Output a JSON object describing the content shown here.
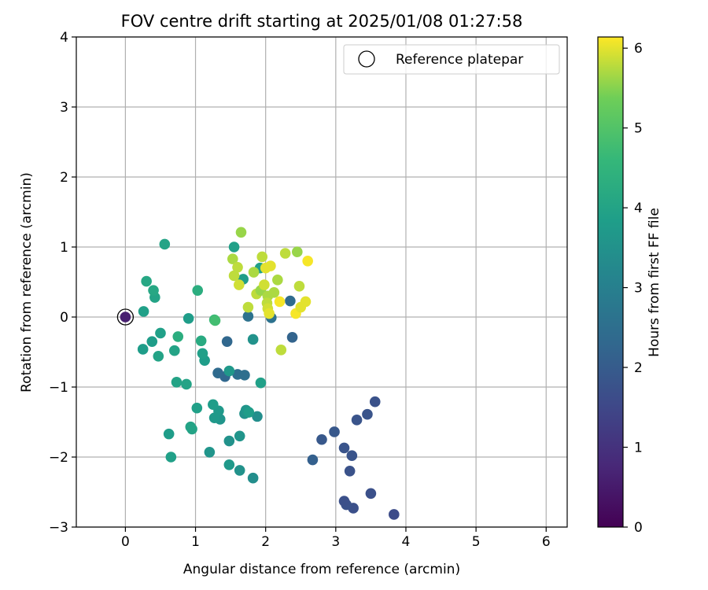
{
  "chart_data": {
    "type": "scatter",
    "title": "FOV centre drift starting at 2025/01/08 01:27:58",
    "xlabel": "Angular distance from reference (arcmin)",
    "ylabel": "Rotation from reference (arcmin)",
    "xlim": [
      -0.7,
      6.3
    ],
    "ylim": [
      -3,
      4
    ],
    "xticks": [
      0,
      1,
      2,
      3,
      4,
      5,
      6
    ],
    "yticks": [
      -3,
      -2,
      -1,
      0,
      1,
      2,
      3,
      4
    ],
    "xtick_labels": [
      "0",
      "1",
      "2",
      "3",
      "4",
      "5",
      "6"
    ],
    "ytick_labels": [
      "−3",
      "−2",
      "−1",
      "0",
      "1",
      "2",
      "3",
      "4"
    ],
    "grid": true,
    "legend": {
      "label": "Reference platepar",
      "position": "top-right"
    },
    "reference_point": {
      "x": 0,
      "y": 0,
      "c": 0.6
    },
    "colorbar": {
      "label": "Hours from first FF file",
      "range": [
        0,
        6.14
      ],
      "ticks": [
        0,
        1,
        2,
        3,
        4,
        5,
        6
      ],
      "tick_labels": [
        "0",
        "1",
        "2",
        "3",
        "4",
        "5",
        "6"
      ],
      "colormap": "viridis"
    },
    "points": [
      {
        "x": 3.83,
        "y": -2.82,
        "c": 1.6
      },
      {
        "x": 3.5,
        "y": -2.52,
        "c": 1.7
      },
      {
        "x": 3.25,
        "y": -2.73,
        "c": 1.7
      },
      {
        "x": 3.15,
        "y": -2.68,
        "c": 1.75
      },
      {
        "x": 3.12,
        "y": -2.63,
        "c": 1.7
      },
      {
        "x": 3.2,
        "y": -2.2,
        "c": 1.75
      },
      {
        "x": 3.23,
        "y": -1.98,
        "c": 1.8
      },
      {
        "x": 3.12,
        "y": -1.87,
        "c": 1.8
      },
      {
        "x": 2.67,
        "y": -2.04,
        "c": 2.1
      },
      {
        "x": 2.8,
        "y": -1.75,
        "c": 1.9
      },
      {
        "x": 2.98,
        "y": -1.64,
        "c": 1.9
      },
      {
        "x": 3.3,
        "y": -1.47,
        "c": 1.8
      },
      {
        "x": 3.45,
        "y": -1.39,
        "c": 1.8
      },
      {
        "x": 3.56,
        "y": -1.21,
        "c": 1.75
      },
      {
        "x": 2.38,
        "y": -0.29,
        "c": 2.2
      },
      {
        "x": 2.35,
        "y": 0.23,
        "c": 2.4
      },
      {
        "x": 2.08,
        "y": -0.01,
        "c": 2.6
      },
      {
        "x": 1.75,
        "y": 0.01,
        "c": 2.6
      },
      {
        "x": 1.45,
        "y": -0.35,
        "c": 2.3
      },
      {
        "x": 1.42,
        "y": -0.85,
        "c": 2.3
      },
      {
        "x": 1.32,
        "y": -0.8,
        "c": 2.4
      },
      {
        "x": 1.6,
        "y": -0.82,
        "c": 2.5
      },
      {
        "x": 1.7,
        "y": -0.83,
        "c": 2.5
      },
      {
        "x": 1.48,
        "y": -0.77,
        "c": 3.7
      },
      {
        "x": 1.82,
        "y": -0.32,
        "c": 3.5
      },
      {
        "x": 1.93,
        "y": -0.94,
        "c": 3.9
      },
      {
        "x": 1.88,
        "y": -1.42,
        "c": 3.4
      },
      {
        "x": 1.7,
        "y": -1.38,
        "c": 3.5
      },
      {
        "x": 1.72,
        "y": -1.33,
        "c": 3.6
      },
      {
        "x": 1.76,
        "y": -1.36,
        "c": 3.8
      },
      {
        "x": 1.63,
        "y": -1.7,
        "c": 3.6
      },
      {
        "x": 1.48,
        "y": -1.77,
        "c": 3.5
      },
      {
        "x": 1.82,
        "y": -2.3,
        "c": 3.4
      },
      {
        "x": 1.63,
        "y": -2.19,
        "c": 3.5
      },
      {
        "x": 1.48,
        "y": -2.11,
        "c": 3.7
      },
      {
        "x": 1.2,
        "y": -1.93,
        "c": 3.6
      },
      {
        "x": 1.35,
        "y": -1.46,
        "c": 3.6
      },
      {
        "x": 1.33,
        "y": -1.34,
        "c": 3.7
      },
      {
        "x": 1.27,
        "y": -1.44,
        "c": 3.7
      },
      {
        "x": 1.25,
        "y": -1.25,
        "c": 3.8
      },
      {
        "x": 1.02,
        "y": -1.3,
        "c": 3.9
      },
      {
        "x": 0.95,
        "y": -1.6,
        "c": 4.0
      },
      {
        "x": 0.93,
        "y": -1.57,
        "c": 4.0
      },
      {
        "x": 0.62,
        "y": -1.67,
        "c": 3.8
      },
      {
        "x": 0.65,
        "y": -2.0,
        "c": 3.9
      },
      {
        "x": 0.73,
        "y": -0.93,
        "c": 4.0
      },
      {
        "x": 0.87,
        "y": -0.96,
        "c": 4.0
      },
      {
        "x": 1.13,
        "y": -0.62,
        "c": 3.8
      },
      {
        "x": 1.1,
        "y": -0.52,
        "c": 3.9
      },
      {
        "x": 1.08,
        "y": -0.34,
        "c": 4.2
      },
      {
        "x": 0.9,
        "y": -0.02,
        "c": 3.8
      },
      {
        "x": 0.7,
        "y": -0.48,
        "c": 4.0
      },
      {
        "x": 0.75,
        "y": -0.28,
        "c": 4.3
      },
      {
        "x": 0.5,
        "y": -0.23,
        "c": 3.9
      },
      {
        "x": 0.47,
        "y": -0.56,
        "c": 4.0
      },
      {
        "x": 0.38,
        "y": -0.35,
        "c": 3.8
      },
      {
        "x": 0.25,
        "y": -0.46,
        "c": 3.8
      },
      {
        "x": 0.26,
        "y": 0.08,
        "c": 3.9
      },
      {
        "x": 0.42,
        "y": 0.28,
        "c": 4.0
      },
      {
        "x": 0.4,
        "y": 0.38,
        "c": 4.1
      },
      {
        "x": 0.3,
        "y": 0.51,
        "c": 4.1
      },
      {
        "x": 0.56,
        "y": 1.04,
        "c": 4.0
      },
      {
        "x": 1.03,
        "y": 0.38,
        "c": 4.3
      },
      {
        "x": 1.27,
        "y": -0.04,
        "c": 4.6
      },
      {
        "x": 1.28,
        "y": -0.05,
        "c": 4.8
      },
      {
        "x": 1.55,
        "y": 1.0,
        "c": 3.9
      },
      {
        "x": 1.68,
        "y": 0.54,
        "c": 3.8
      },
      {
        "x": 1.92,
        "y": 0.7,
        "c": 3.9
      },
      {
        "x": 1.65,
        "y": 1.21,
        "c": 5.6
      },
      {
        "x": 1.53,
        "y": 0.83,
        "c": 5.7
      },
      {
        "x": 1.6,
        "y": 0.71,
        "c": 5.8
      },
      {
        "x": 1.55,
        "y": 0.59,
        "c": 5.8
      },
      {
        "x": 1.62,
        "y": 0.46,
        "c": 5.9
      },
      {
        "x": 1.75,
        "y": 0.14,
        "c": 5.8
      },
      {
        "x": 1.83,
        "y": 0.64,
        "c": 5.7
      },
      {
        "x": 1.87,
        "y": 0.33,
        "c": 5.8
      },
      {
        "x": 1.93,
        "y": 0.38,
        "c": 5.6
      },
      {
        "x": 1.95,
        "y": 0.86,
        "c": 5.8
      },
      {
        "x": 1.98,
        "y": 0.46,
        "c": 5.9
      },
      {
        "x": 2.0,
        "y": 0.7,
        "c": 6.0
      },
      {
        "x": 2.03,
        "y": 0.3,
        "c": 5.7
      },
      {
        "x": 2.02,
        "y": 0.2,
        "c": 5.8
      },
      {
        "x": 2.03,
        "y": 0.12,
        "c": 5.9
      },
      {
        "x": 2.05,
        "y": 0.05,
        "c": 6.0
      },
      {
        "x": 2.07,
        "y": 0.73,
        "c": 6.0
      },
      {
        "x": 2.12,
        "y": 0.35,
        "c": 5.7
      },
      {
        "x": 2.17,
        "y": 0.53,
        "c": 5.7
      },
      {
        "x": 2.2,
        "y": 0.22,
        "c": 6.1
      },
      {
        "x": 2.22,
        "y": -0.47,
        "c": 5.8
      },
      {
        "x": 2.28,
        "y": 0.91,
        "c": 5.8
      },
      {
        "x": 2.45,
        "y": 0.93,
        "c": 5.6
      },
      {
        "x": 2.43,
        "y": 0.05,
        "c": 6.1
      },
      {
        "x": 2.5,
        "y": 0.14,
        "c": 6.0
      },
      {
        "x": 2.48,
        "y": 0.44,
        "c": 5.8
      },
      {
        "x": 2.57,
        "y": 0.22,
        "c": 6.0
      },
      {
        "x": 2.6,
        "y": 0.8,
        "c": 6.1
      }
    ]
  }
}
